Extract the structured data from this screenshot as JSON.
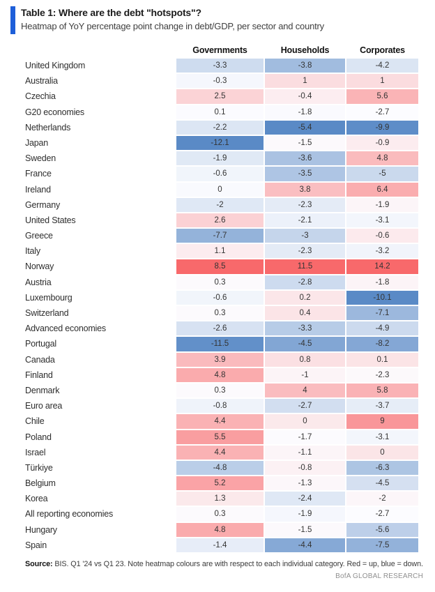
{
  "header": {
    "title": "Table 1: Where are the debt \"hotspots\"?",
    "subtitle": "Heatmap of YoY percentage point change in debt/GDP, per sector and country"
  },
  "footer": {
    "source_label": "Source:",
    "source_text": "BIS. Q1 '24 vs Q1 23. Note heatmap colours are with respect to each individual category. Red = up, blue = down.",
    "branding": "BofA GLOBAL RESEARCH"
  },
  "colors": {
    "accent": "#1E5FD9",
    "scale_low": "#5A8AC6",
    "scale_mid": "#FCFCFF",
    "scale_high": "#F8696B"
  },
  "chart_data": {
    "type": "heatmap",
    "title": "Table 1: Where are the debt \"hotspots\"?",
    "subtitle": "Heatmap of YoY percentage point change in debt/GDP, per sector and country",
    "columns": [
      "Governments",
      "Households",
      "Corporates"
    ],
    "rows": [
      {
        "country": "United Kingdom",
        "values": [
          -3.3,
          -3.8,
          -4.2
        ]
      },
      {
        "country": "Australia",
        "values": [
          -0.3,
          1,
          1
        ]
      },
      {
        "country": "Czechia",
        "values": [
          2.5,
          -0.4,
          5.6
        ]
      },
      {
        "country": "G20 economies",
        "values": [
          0.1,
          -1.8,
          -2.7
        ]
      },
      {
        "country": "Netherlands",
        "values": [
          -2.2,
          -5.4,
          -9.9
        ]
      },
      {
        "country": "Japan",
        "values": [
          -12.1,
          -1.5,
          -0.9
        ]
      },
      {
        "country": "Sweden",
        "values": [
          -1.9,
          -3.6,
          4.8
        ]
      },
      {
        "country": "France",
        "values": [
          -0.6,
          -3.5,
          -5
        ]
      },
      {
        "country": "Ireland",
        "values": [
          0,
          3.8,
          6.4
        ]
      },
      {
        "country": "Germany",
        "values": [
          -2,
          -2.3,
          -1.9
        ]
      },
      {
        "country": "United States",
        "values": [
          2.6,
          -2.1,
          -3.1
        ]
      },
      {
        "country": "Greece",
        "values": [
          -7.7,
          -3,
          -0.6
        ]
      },
      {
        "country": "Italy",
        "values": [
          1.1,
          -2.3,
          -3.2
        ]
      },
      {
        "country": "Norway",
        "values": [
          8.5,
          11.5,
          14.2
        ]
      },
      {
        "country": "Austria",
        "values": [
          0.3,
          -2.8,
          -1.8
        ]
      },
      {
        "country": "Luxembourg",
        "values": [
          -0.6,
          0.2,
          -10.1
        ]
      },
      {
        "country": "Switzerland",
        "values": [
          0.3,
          0.4,
          -7.1
        ]
      },
      {
        "country": "Advanced economies",
        "values": [
          -2.6,
          -3.3,
          -4.9
        ]
      },
      {
        "country": "Portugal",
        "values": [
          -11.5,
          -4.5,
          -8.2
        ]
      },
      {
        "country": "Canada",
        "values": [
          3.9,
          0.8,
          0.1
        ]
      },
      {
        "country": "Finland",
        "values": [
          4.8,
          -1,
          -2.3
        ]
      },
      {
        "country": "Denmark",
        "values": [
          0.3,
          4,
          5.8
        ]
      },
      {
        "country": "Euro area",
        "values": [
          -0.8,
          -2.7,
          -3.7
        ]
      },
      {
        "country": "Chile",
        "values": [
          4.4,
          0,
          9
        ]
      },
      {
        "country": "Poland",
        "values": [
          5.5,
          -1.7,
          -3.1
        ]
      },
      {
        "country": "Israel",
        "values": [
          4.4,
          -1.1,
          0
        ]
      },
      {
        "country": "Türkiye",
        "values": [
          -4.8,
          -0.8,
          -6.3
        ]
      },
      {
        "country": "Belgium",
        "values": [
          5.2,
          -1.3,
          -4.5
        ]
      },
      {
        "country": "Korea",
        "values": [
          1.3,
          -2.4,
          -2
        ]
      },
      {
        "country": "All reporting economies",
        "values": [
          0.3,
          -1.9,
          -2.7
        ]
      },
      {
        "country": "Hungary",
        "values": [
          4.8,
          -1.5,
          -5.6
        ]
      },
      {
        "country": "Spain",
        "values": [
          -1.4,
          -4.4,
          -7.5
        ]
      }
    ],
    "color_scale": {
      "low": "#5A8AC6",
      "mid": "#FCFCFF",
      "high": "#F8696B",
      "midpoint": "per-column median",
      "note": "heatmap colours are with respect to each individual category; red = up, blue = down"
    },
    "legend_position": "none",
    "grid": false
  }
}
